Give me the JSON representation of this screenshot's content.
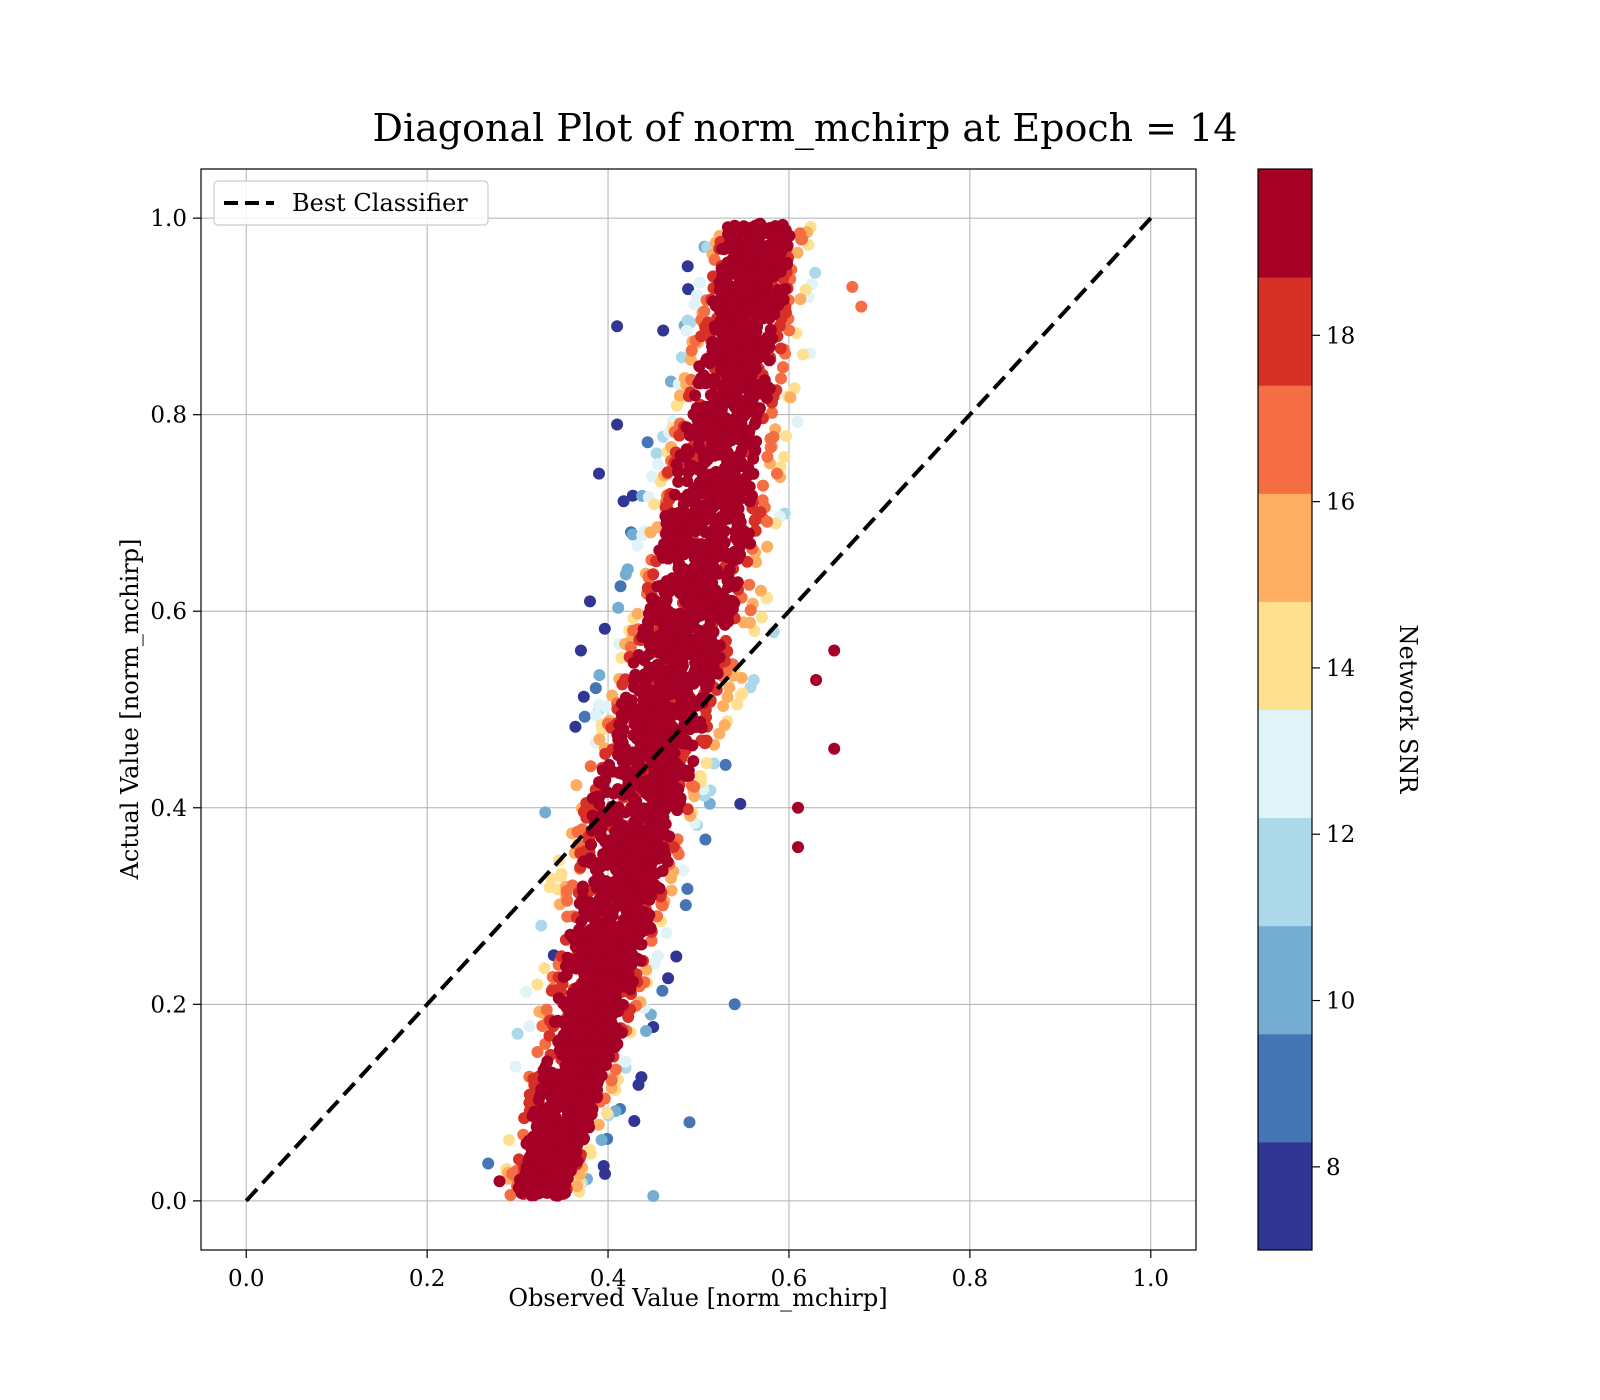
{
  "chart_data": {
    "type": "scatter",
    "title": "Diagonal Plot of norm_mchirp at Epoch = 14",
    "xlabel": "Observed Value [norm_mchirp]",
    "ylabel": "Actual Value [norm_mchirp]",
    "xlim": [
      -0.05,
      1.05
    ],
    "ylim": [
      -0.05,
      1.05
    ],
    "x_ticks": [
      0.0,
      0.2,
      0.4,
      0.6,
      0.8,
      1.0
    ],
    "y_ticks": [
      0.0,
      0.2,
      0.4,
      0.6,
      0.8,
      1.0
    ],
    "x_tick_labels": [
      "0.0",
      "0.2",
      "0.4",
      "0.6",
      "0.8",
      "1.0"
    ],
    "y_tick_labels": [
      "0.0",
      "0.2",
      "0.4",
      "0.6",
      "0.8",
      "1.0"
    ],
    "grid": true,
    "legend": {
      "position": "top-left",
      "entries": [
        "Best Classifier"
      ]
    },
    "reference_line": {
      "name": "Best Classifier",
      "x": [
        0.0,
        1.0
      ],
      "y": [
        0.0,
        1.0
      ],
      "style": "dashed",
      "color": "#000000"
    },
    "point_cloud_trend": {
      "y": [
        0.02,
        0.1,
        0.2,
        0.3,
        0.4,
        0.5,
        0.6,
        0.7,
        0.8,
        0.9,
        0.98
      ],
      "x_center": [
        0.33,
        0.355,
        0.385,
        0.41,
        0.435,
        0.46,
        0.49,
        0.51,
        0.53,
        0.55,
        0.565
      ],
      "x_spread": [
        0.035,
        0.045,
        0.05,
        0.055,
        0.06,
        0.06,
        0.06,
        0.06,
        0.055,
        0.05,
        0.045
      ]
    },
    "outliers": [
      {
        "x": 0.39,
        "y": 0.74,
        "snr": 7.5
      },
      {
        "x": 0.41,
        "y": 0.79,
        "snr": 7.5
      },
      {
        "x": 0.41,
        "y": 0.89,
        "snr": 7.5
      },
      {
        "x": 0.38,
        "y": 0.61,
        "snr": 7.5
      },
      {
        "x": 0.37,
        "y": 0.56,
        "snr": 7.5
      },
      {
        "x": 0.34,
        "y": 0.25,
        "snr": 7.5
      },
      {
        "x": 0.65,
        "y": 0.56,
        "snr": 19.5
      },
      {
        "x": 0.65,
        "y": 0.46,
        "snr": 19.5
      },
      {
        "x": 0.63,
        "y": 0.53,
        "snr": 19.5
      },
      {
        "x": 0.68,
        "y": 0.91,
        "snr": 16.5
      },
      {
        "x": 0.67,
        "y": 0.93,
        "snr": 16.5
      },
      {
        "x": 0.54,
        "y": 0.2,
        "snr": 9.5
      },
      {
        "x": 0.49,
        "y": 0.08,
        "snr": 9.5
      },
      {
        "x": 0.45,
        "y": 0.005,
        "snr": 10.5
      },
      {
        "x": 0.28,
        "y": 0.02,
        "snr": 19.5
      },
      {
        "x": 0.3,
        "y": 0.17,
        "snr": 11.5
      },
      {
        "x": 0.61,
        "y": 0.4,
        "snr": 19.5
      },
      {
        "x": 0.61,
        "y": 0.36,
        "snr": 19.5
      }
    ],
    "colorbar": {
      "label": "Network SNR",
      "range": [
        7,
        20
      ],
      "ticks": [
        8,
        10,
        12,
        14,
        16,
        18
      ],
      "tick_labels": [
        "8",
        "10",
        "12",
        "14",
        "16",
        "18"
      ],
      "bins": [
        {
          "min": 7,
          "max": 8.3,
          "color": "#313695"
        },
        {
          "min": 8.3,
          "max": 9.6,
          "color": "#4575b4"
        },
        {
          "min": 9.6,
          "max": 10.9,
          "color": "#74add1"
        },
        {
          "min": 10.9,
          "max": 12.2,
          "color": "#abd9e9"
        },
        {
          "min": 12.2,
          "max": 13.5,
          "color": "#e0f3f8"
        },
        {
          "min": 13.5,
          "max": 14.8,
          "color": "#fee090"
        },
        {
          "min": 14.8,
          "max": 16.1,
          "color": "#fdae61"
        },
        {
          "min": 16.1,
          "max": 17.4,
          "color": "#f46d43"
        },
        {
          "min": 17.4,
          "max": 18.7,
          "color": "#d73027"
        },
        {
          "min": 18.7,
          "max": 20,
          "color": "#a50026"
        }
      ]
    }
  }
}
